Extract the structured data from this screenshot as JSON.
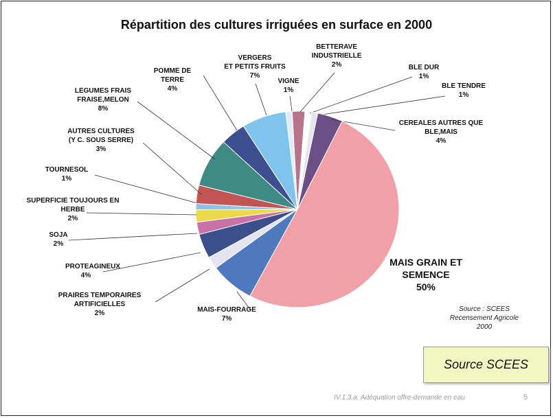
{
  "chart_data": {
    "type": "pie",
    "title": "Répartition des cultures irriguées en surface en 2000",
    "slices": [
      {
        "label": "BETTERAVE\nINDUSTRIELLE",
        "value_label": "2%",
        "value": 2,
        "color": "#b8728a"
      },
      {
        "label": "BLE DUR",
        "value_label": "1%",
        "value": 1,
        "color": "#ffffff"
      },
      {
        "label": "BLE TENDRE",
        "value_label": "1%",
        "value": 1,
        "color": "#e6e6ee"
      },
      {
        "label": "CEREALES AUTRES QUE\nBLE,MAIS",
        "value_label": "4%",
        "value": 4,
        "color": "#6c4f86"
      },
      {
        "label": "MAIS GRAIN ET\nSEMENCE",
        "value_label": "50%",
        "value": 50,
        "color": "#f2a0a8"
      },
      {
        "label": "MAIS-FOURRAGE",
        "value_label": "7%",
        "value": 7,
        "color": "#4e79be"
      },
      {
        "label": "PRAIRES TEMPORAIRES\nARTIFICIELLES",
        "value_label": "2%",
        "value": 2,
        "color": "#e4e4f0"
      },
      {
        "label": "PROTEAGINEUX",
        "value_label": "4%",
        "value": 4,
        "color": "#3b4f8c"
      },
      {
        "label": "SOJA",
        "value_label": "2%",
        "value": 2,
        "color": "#c872a8"
      },
      {
        "label": "SUPERFICIE TOUJOURS EN\nHERBE",
        "value_label": "2%",
        "value": 2,
        "color": "#ecd94a"
      },
      {
        "label": "TOURNESOL",
        "value_label": "1%",
        "value": 1,
        "color": "#8ec3e6"
      },
      {
        "label": "AUTRES CULTURES\n(Y C. SOUS SERRE)",
        "value_label": "3%",
        "value": 3,
        "color": "#c25454"
      },
      {
        "label": "LEGUMES FRAIS\nFRAISE,MELON",
        "value_label": "8%",
        "value": 8,
        "color": "#3f8a84"
      },
      {
        "label": "POMME DE TERRE",
        "value_label": "4%",
        "value": 4,
        "color": "#3e4f8f"
      },
      {
        "label": "VERGERS\nET PETITS FRUITS",
        "value_label": "7%",
        "value": 7,
        "color": "#7fc4ec"
      },
      {
        "label": "VIGNE",
        "value_label": "1%",
        "value": 1,
        "color": "#e0ecf8"
      }
    ]
  },
  "source_note": "Source :  SCEES\nRecensement Agricole\n2000",
  "source_box": "Source SCEES",
  "footer": "IV.1.3.a. Adéquation offre-demande en eau",
  "page_number": "5"
}
